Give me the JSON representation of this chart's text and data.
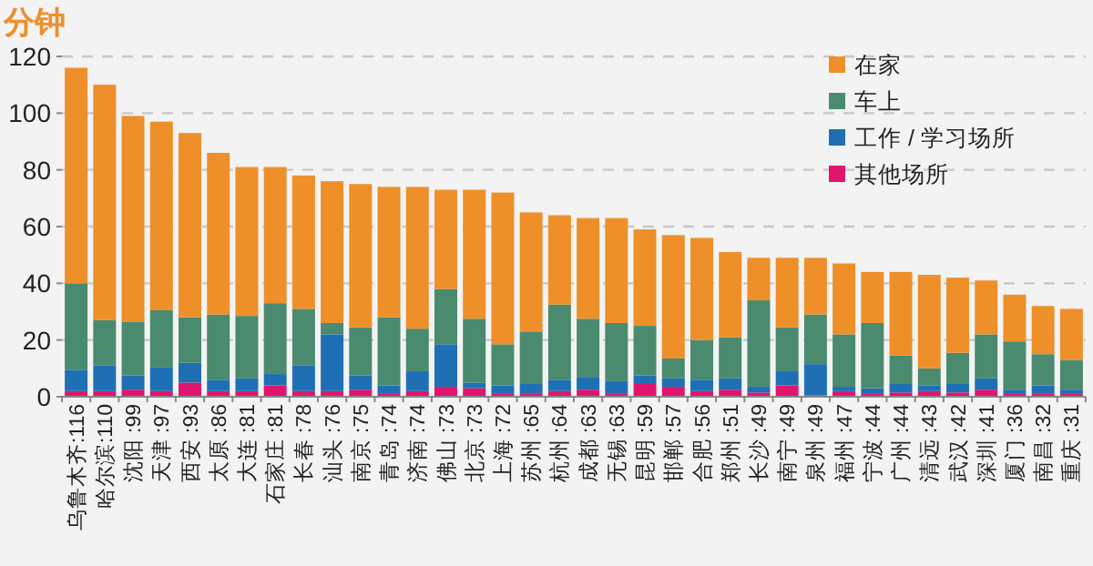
{
  "chart_data": {
    "type": "bar",
    "stacked": true,
    "ylabel": "分钟",
    "categories": [
      "乌鲁木齐:116",
      "哈尔滨:110",
      "沈阳 :99",
      "天津 :97",
      "西安 :93",
      "太原 :86",
      "大连 :81",
      "石家庄 :81",
      "长春 :78",
      "汕头 :76",
      "南京 :75",
      "青岛 :74",
      "济南 :74",
      "佛山 :73",
      "北京 :73",
      "上海 :72",
      "苏州 :65",
      "杭州 :64",
      "成都 :63",
      "无锡 :63",
      "昆明 :59",
      "邯郸 :57",
      "合肥 :56",
      "郑州 :51",
      "长沙 :49",
      "南宁 :49",
      "泉州 :49",
      "福州 :47",
      "宁波 :44",
      "广州 :44",
      "清远 :43",
      "武汉 :42",
      "深圳 :41",
      "厦门 :36",
      "南昌 :32",
      "重庆 :31"
    ],
    "series": [
      {
        "name": "其他场所",
        "color": "#e0156e",
        "values": [
          2,
          2,
          2.5,
          2,
          5,
          2,
          2,
          4,
          2,
          2,
          2.5,
          1,
          2,
          3.5,
          3,
          1,
          1,
          2,
          2.5,
          1,
          4.5,
          3.5,
          2,
          2.5,
          1.5,
          4,
          0.5,
          2,
          1,
          1.5,
          2,
          1.5,
          2.5,
          1,
          1,
          1
        ]
      },
      {
        "name": "工作 / 学习场所",
        "color": "#1f6fb5",
        "values": [
          7.5,
          9,
          5,
          8.5,
          7,
          4,
          4.5,
          4,
          9,
          20,
          5,
          3,
          7,
          15,
          2,
          3,
          3.5,
          4,
          4.5,
          4.5,
          3,
          3,
          4,
          4,
          2,
          5,
          11,
          1.5,
          2,
          3,
          2,
          3,
          4,
          1.5,
          3,
          1.5
        ]
      },
      {
        "name": "车上",
        "color": "#4a8a6f",
        "values": [
          30.5,
          16,
          19,
          20,
          16,
          23,
          22,
          25,
          20,
          4,
          17,
          24,
          15,
          19.5,
          22.5,
          14.5,
          18.5,
          26.5,
          20.5,
          20.5,
          17.5,
          7,
          14,
          14.5,
          30.5,
          15.5,
          17.5,
          18.5,
          23,
          10,
          6,
          11,
          15.5,
          17,
          11,
          10.5
        ]
      },
      {
        "name": "在家",
        "color": "#ee8f2a",
        "values": [
          76,
          83,
          72.5,
          66.5,
          65,
          57,
          52.5,
          48,
          47,
          50,
          50.5,
          46,
          50,
          35,
          45.5,
          53.5,
          42,
          31.5,
          35.5,
          37,
          34,
          43.5,
          36,
          30,
          15,
          24.5,
          20,
          25,
          18,
          29.5,
          33,
          26.5,
          19,
          16.5,
          17,
          18
        ]
      }
    ],
    "ylim": [
      0,
      120
    ],
    "yticks": [
      0,
      20,
      40,
      60,
      80,
      100,
      120
    ],
    "grid": "y",
    "legend": "top right"
  }
}
